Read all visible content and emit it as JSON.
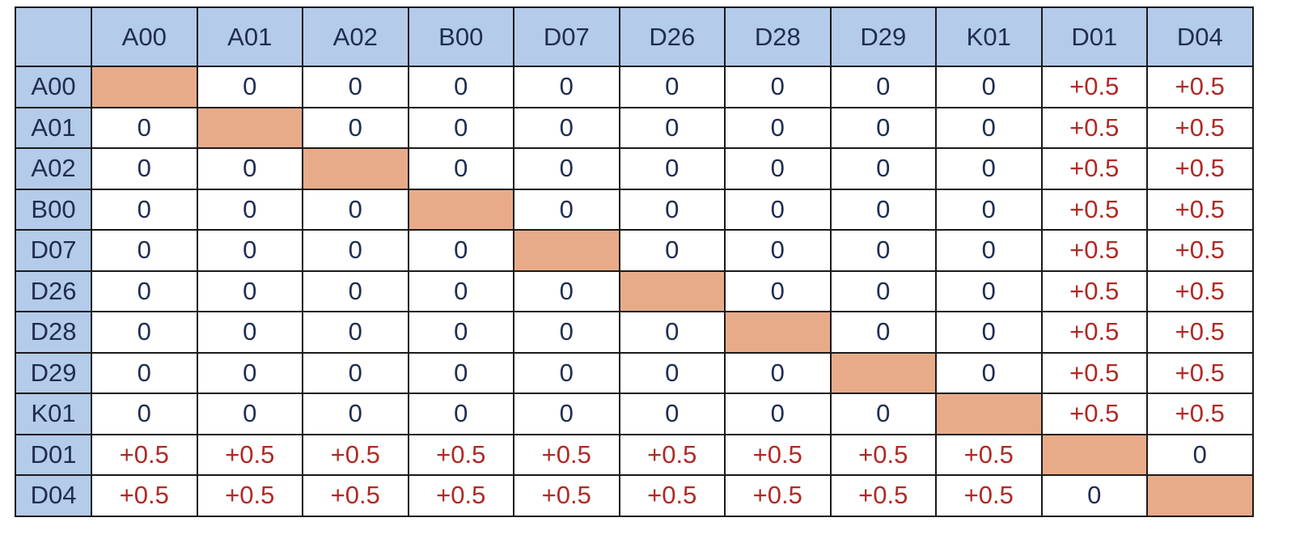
{
  "matrix": {
    "columns": [
      "A00",
      "A01",
      "A02",
      "B00",
      "D07",
      "D26",
      "D28",
      "D29",
      "K01",
      "D01",
      "D04"
    ],
    "rows": [
      {
        "label": "A00",
        "cells": [
          "",
          "0",
          "0",
          "0",
          "0",
          "0",
          "0",
          "0",
          "0",
          "+0.5",
          "+0.5"
        ]
      },
      {
        "label": "A01",
        "cells": [
          "0",
          "",
          "0",
          "0",
          "0",
          "0",
          "0",
          "0",
          "0",
          "+0.5",
          "+0.5"
        ]
      },
      {
        "label": "A02",
        "cells": [
          "0",
          "0",
          "",
          "0",
          "0",
          "0",
          "0",
          "0",
          "0",
          "+0.5",
          "+0.5"
        ]
      },
      {
        "label": "B00",
        "cells": [
          "0",
          "0",
          "0",
          "",
          "0",
          "0",
          "0",
          "0",
          "0",
          "+0.5",
          "+0.5"
        ]
      },
      {
        "label": "D07",
        "cells": [
          "0",
          "0",
          "0",
          "0",
          "",
          "0",
          "0",
          "0",
          "0",
          "+0.5",
          "+0.5"
        ]
      },
      {
        "label": "D26",
        "cells": [
          "0",
          "0",
          "0",
          "0",
          "0",
          "",
          "0",
          "0",
          "0",
          "+0.5",
          "+0.5"
        ]
      },
      {
        "label": "D28",
        "cells": [
          "0",
          "0",
          "0",
          "0",
          "0",
          "0",
          "",
          "0",
          "0",
          "+0.5",
          "+0.5"
        ]
      },
      {
        "label": "D29",
        "cells": [
          "0",
          "0",
          "0",
          "0",
          "0",
          "0",
          "0",
          "",
          "0",
          "+0.5",
          "+0.5"
        ]
      },
      {
        "label": "K01",
        "cells": [
          "0",
          "0",
          "0",
          "0",
          "0",
          "0",
          "0",
          "0",
          "",
          "+0.5",
          "+0.5"
        ]
      },
      {
        "label": "D01",
        "cells": [
          "+0.5",
          "+0.5",
          "+0.5",
          "+0.5",
          "+0.5",
          "+0.5",
          "+0.5",
          "+0.5",
          "+0.5",
          "",
          "0"
        ]
      },
      {
        "label": "D04",
        "cells": [
          "+0.5",
          "+0.5",
          "+0.5",
          "+0.5",
          "+0.5",
          "+0.5",
          "+0.5",
          "+0.5",
          "+0.5",
          "0",
          ""
        ]
      }
    ]
  },
  "colors": {
    "header_fill": "#b4cbe9",
    "diagonal_fill": "#e7ab89",
    "zero_text": "#1f2d50",
    "positive_text": "#b02a25",
    "grid_line": "#1a1a1a"
  }
}
